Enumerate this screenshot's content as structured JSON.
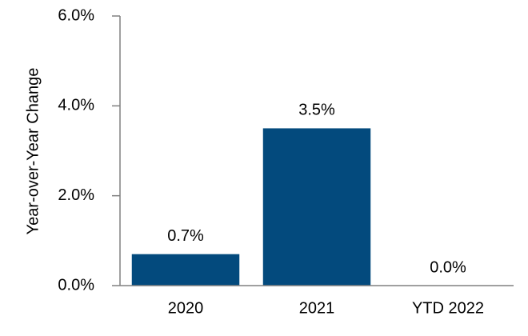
{
  "chart_data": {
    "type": "bar",
    "y_label": "Year-over-Year Change",
    "categories": [
      "2020",
      "2021",
      "YTD 2022"
    ],
    "values": [
      0.7,
      3.5,
      0.0
    ],
    "value_labels": [
      "0.7%",
      "3.5%",
      "0.0%"
    ],
    "color": "#034a7d",
    "ylim": [
      0,
      6
    ],
    "yticks": [
      {
        "value": 0,
        "label": "0.0%"
      },
      {
        "value": 2,
        "label": "2.0%"
      },
      {
        "value": 4,
        "label": "4.0%"
      },
      {
        "value": 6,
        "label": "6.0%"
      }
    ],
    "grid": false
  }
}
